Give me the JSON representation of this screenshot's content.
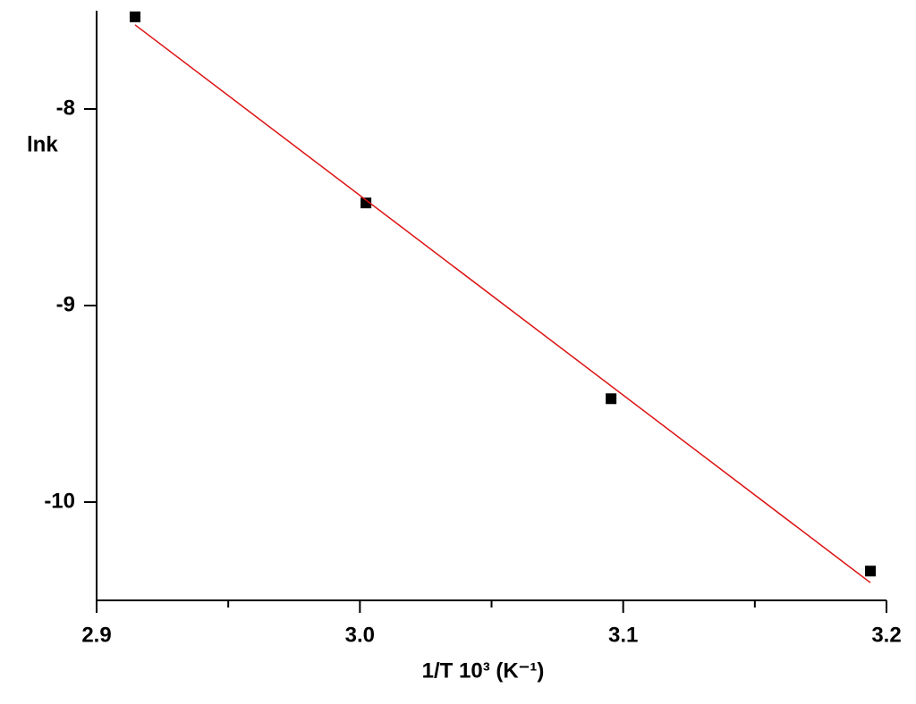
{
  "chart_data": {
    "type": "scatter",
    "xlabel": "1/T 10³ (K⁻¹)",
    "ylabel": "lnk",
    "xlim": [
      2.9,
      3.2
    ],
    "ylim": [
      -10.5,
      -7.5
    ],
    "xticks": [
      2.9,
      {
        "value": 3,
        "label": "3.0"
      },
      3.1,
      3.2
    ],
    "xminorticks": [
      2.95,
      3.05,
      3.15
    ],
    "yticks": [
      -8,
      -9,
      -10
    ],
    "series": [
      {
        "style": "markers",
        "color": "#000000",
        "x": [
          2.9146,
          3.0023,
          3.0954,
          3.1939
        ],
        "values": [
          -7.531,
          -8.478,
          -9.474,
          -10.351
        ]
      },
      {
        "style": "line",
        "color": "#dd1111",
        "x": [
          2.9146,
          3.1939
        ],
        "values": [
          -7.572,
          -10.41
        ]
      }
    ]
  }
}
